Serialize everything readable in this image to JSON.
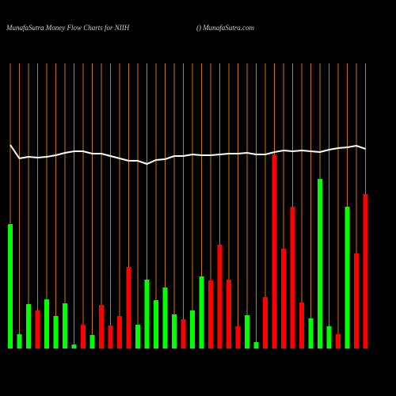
{
  "chart_data": {
    "type": "bar",
    "title": "MunafaSutra  Money Flow  Charts for NIIH",
    "subtitle": "() MunafaSutra.com",
    "ylim": [
      0,
      440
    ],
    "grid_color": "#c87800",
    "series": [
      {
        "type": "bar",
        "values": [
          157,
          18,
          56,
          48,
          62,
          41,
          57,
          5,
          30,
          17,
          55,
          29,
          41,
          103,
          30,
          87,
          61,
          77,
          43,
          37,
          48,
          91,
          86,
          131,
          87,
          28,
          42,
          8,
          65,
          245,
          126,
          179,
          58,
          38,
          214,
          28,
          18,
          179,
          120,
          195
        ],
        "colors": [
          "#00ff00",
          "#00ff00",
          "#00ff00",
          "#ff0000",
          "#00ff00",
          "#00ff00",
          "#00ff00",
          "#00ff00",
          "#ff0000",
          "#00ff00",
          "#ff0000",
          "#ff0000",
          "#ff0000",
          "#ff0000",
          "#00ff00",
          "#00ff00",
          "#00ff00",
          "#00ff00",
          "#00ff00",
          "#ff0000",
          "#00ff00",
          "#00ff00",
          "#ff0000",
          "#ff0000",
          "#ff0000",
          "#ff0000",
          "#00ff00",
          "#00ff00",
          "#ff0000",
          "#ff0000",
          "#ff0000",
          "#ff0000",
          "#ff0000",
          "#00ff00",
          "#00ff00",
          "#00ff00",
          "#ff0000",
          "#00ff00",
          "#ff0000",
          "#ff0000"
        ]
      },
      {
        "type": "line",
        "color": "#ffffff",
        "values": [
          257,
          240,
          242,
          241,
          242,
          244,
          247,
          249,
          249,
          246,
          246,
          243,
          240,
          237,
          237,
          233,
          238,
          239,
          243,
          243,
          245,
          244,
          244,
          245,
          246,
          246,
          247,
          245,
          245,
          248,
          250,
          249,
          250,
          249,
          248,
          251,
          253,
          254,
          256,
          252
        ]
      }
    ]
  }
}
